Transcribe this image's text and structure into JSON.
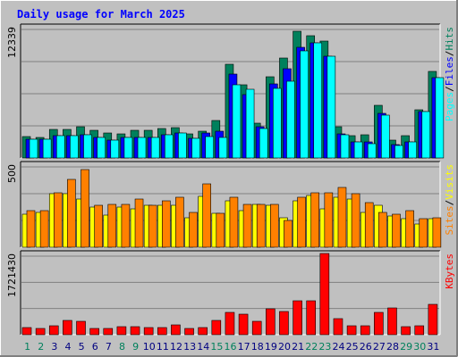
{
  "chart_data": [
    {
      "type": "bar",
      "title": "Daily usage for March 2025",
      "ymax_label": "12339",
      "ylim": [
        0,
        12339
      ],
      "categories": [
        "1",
        "2",
        "3",
        "4",
        "5",
        "6",
        "7",
        "8",
        "9",
        "10",
        "11",
        "12",
        "13",
        "14",
        "15",
        "16",
        "17",
        "18",
        "19",
        "20",
        "21",
        "22",
        "23",
        "24",
        "25",
        "26",
        "27",
        "28",
        "29",
        "30",
        "31"
      ],
      "weekend_days": [
        "1",
        "2",
        "8",
        "9",
        "15",
        "16",
        "22",
        "23",
        "29",
        "30"
      ],
      "series": [
        {
          "name": "Hits",
          "color": "#00805c",
          "values": [
            2010,
            1970,
            2720,
            2720,
            2910,
            2590,
            2340,
            2270,
            2590,
            2590,
            2770,
            2840,
            2270,
            2520,
            3550,
            8780,
            6890,
            3290,
            7650,
            9370,
            11880,
            11540,
            10960,
            2970,
            2140,
            2150,
            4990,
            1710,
            2140,
            4570,
            8110
          ]
        },
        {
          "name": "Files",
          "color": "#0000ff",
          "values": [
            1780,
            1740,
            2070,
            2070,
            2200,
            1950,
            1710,
            1950,
            1950,
            1950,
            2180,
            2330,
            1840,
            2330,
            2490,
            7910,
            5970,
            2960,
            6980,
            8380,
            10450,
            10850,
            9580,
            2260,
            1530,
            1530,
            4190,
            1240,
            1500,
            4360,
            7590
          ]
        },
        {
          "name": "Pages",
          "color": "#00ffff",
          "values": [
            1780,
            1740,
            2070,
            2070,
            2200,
            1950,
            1710,
            1950,
            1950,
            1950,
            2180,
            2330,
            1840,
            1990,
            1950,
            6900,
            6430,
            2770,
            6550,
            7230,
            10070,
            10850,
            9580,
            2180,
            1540,
            1330,
            4050,
            1190,
            1500,
            4360,
            7590
          ]
        }
      ],
      "legend": [
        "Pages",
        "Files",
        "Hits"
      ]
    },
    {
      "type": "bar",
      "ymax_label": "500",
      "ylim": [
        0,
        500
      ],
      "categories": [
        "1",
        "2",
        "3",
        "4",
        "5",
        "6",
        "7",
        "8",
        "9",
        "10",
        "11",
        "12",
        "13",
        "14",
        "15",
        "16",
        "17",
        "18",
        "19",
        "20",
        "21",
        "22",
        "23",
        "24",
        "25",
        "26",
        "27",
        "28",
        "29",
        "30",
        "31"
      ],
      "series": [
        {
          "name": "Visits",
          "color": "#ffff00",
          "values": [
            200,
            210,
            320,
            320,
            290,
            240,
            195,
            240,
            230,
            250,
            250,
            250,
            175,
            305,
            205,
            280,
            220,
            260,
            255,
            180,
            280,
            310,
            230,
            300,
            290,
            210,
            250,
            190,
            170,
            140,
            170
          ]
        },
        {
          "name": "Sites",
          "color": "#ff8000",
          "values": [
            220,
            220,
            330,
            410,
            470,
            255,
            260,
            260,
            290,
            250,
            280,
            300,
            210,
            380,
            205,
            300,
            260,
            260,
            260,
            160,
            300,
            330,
            330,
            360,
            320,
            270,
            210,
            200,
            220,
            170,
            175
          ]
        }
      ],
      "legend": [
        "Sites",
        "Visits"
      ]
    },
    {
      "type": "bar",
      "ymax_label": "1721430",
      "ylim": [
        0,
        1721430
      ],
      "categories": [
        "1",
        "2",
        "3",
        "4",
        "5",
        "6",
        "7",
        "8",
        "9",
        "10",
        "11",
        "12",
        "13",
        "14",
        "15",
        "16",
        "17",
        "18",
        "19",
        "20",
        "21",
        "22",
        "23",
        "24",
        "25",
        "26",
        "27",
        "28",
        "29",
        "30",
        "31"
      ],
      "series": [
        {
          "name": "KBytes",
          "color": "#ff0000",
          "values": [
            150000,
            130000,
            190000,
            300000,
            280000,
            140000,
            130000,
            170000,
            170000,
            160000,
            160000,
            200000,
            140000,
            150000,
            300000,
            480000,
            440000,
            280000,
            540000,
            490000,
            720000,
            720000,
            1721430,
            340000,
            190000,
            190000,
            480000,
            560000,
            170000,
            180000,
            650000
          ]
        }
      ],
      "legend": [
        "KBytes"
      ]
    }
  ]
}
